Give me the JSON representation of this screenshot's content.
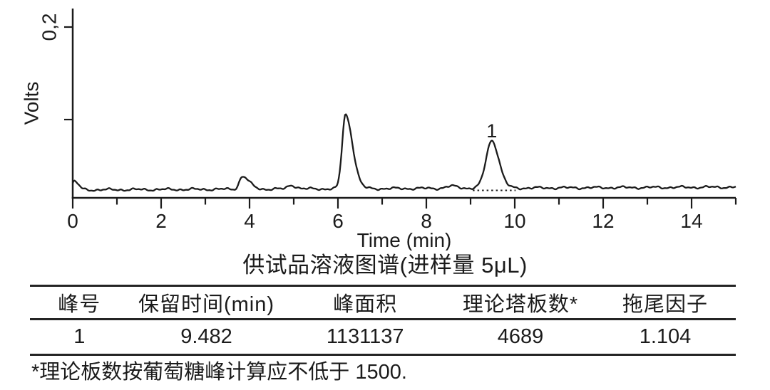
{
  "chart_data": {
    "type": "line",
    "xlabel": "Time (min)",
    "ylabel": "Volts",
    "xlim": [
      0,
      15
    ],
    "x_major_ticks": [
      0,
      2,
      4,
      6,
      8,
      10,
      12,
      14
    ],
    "x_minor_ticks": [
      1,
      3,
      5,
      7,
      9,
      11,
      13,
      15
    ],
    "y_ticks": [
      {
        "value": 0.2,
        "label": "0,2"
      },
      {
        "value": 0.1,
        "label": ""
      }
    ],
    "grid": false,
    "legend": "none",
    "line_color": "#1b1b1b",
    "baseline_volts": 0.024,
    "baseline_drift_volts": 0.0002,
    "noise_volts": 0.0008,
    "peaks": [
      {
        "time": 0.04,
        "height": 0.009,
        "sigma_left": 0.05,
        "sigma_right": 0.09,
        "label": ""
      },
      {
        "time": 3.84,
        "height": 0.0138,
        "sigma_left": 0.07,
        "sigma_right": 0.15,
        "label": ""
      },
      {
        "time": 4.94,
        "height": 0.0042,
        "sigma_left": 0.07,
        "sigma_right": 0.11,
        "label": ""
      },
      {
        "time": 6.17,
        "height": 0.08,
        "sigma_left": 0.075,
        "sigma_right": 0.16,
        "label": ""
      },
      {
        "time": 8.57,
        "height": 0.0022,
        "sigma_left": 0.12,
        "sigma_right": 0.15,
        "label": ""
      },
      {
        "time": 9.48,
        "height": 0.0515,
        "sigma_left": 0.13,
        "sigma_right": 0.16,
        "label": "1"
      }
    ],
    "integration_baseline": {
      "t_start": 9.05,
      "t_end": 10.02,
      "volts": 0.0235
    }
  },
  "caption": "供试品溶液图谱(进样量 5μL)",
  "table": {
    "headers": [
      "峰号",
      "保留时间(min)",
      "峰面积",
      "理论塔板数*",
      "拖尾因子"
    ],
    "rows": [
      [
        "1",
        "9.482",
        "1131137",
        "4689",
        "1.104"
      ]
    ]
  },
  "footnote": "*理论板数按葡萄糖峰计算应不低于 1500."
}
